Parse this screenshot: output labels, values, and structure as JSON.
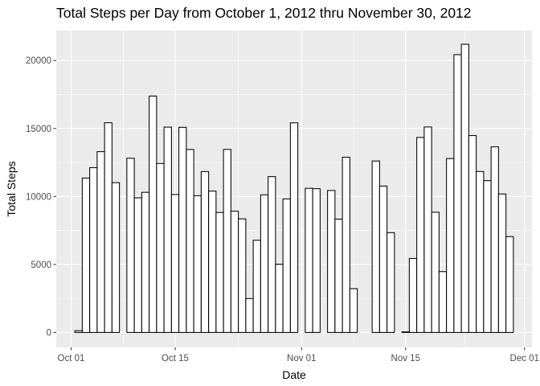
{
  "chart_data": {
    "type": "bar",
    "title": "Total Steps per Day from October 1, 2012 thru November 30, 2012",
    "xlabel": "Date",
    "ylabel": "Total Steps",
    "x_start_date": "2012-10-01",
    "x_range_dates": [
      "2012-09-29",
      "2012-12-02"
    ],
    "ylim": [
      -1100,
      22200
    ],
    "x_ticks": [
      {
        "label": "Oct 01",
        "date": "2012-10-01"
      },
      {
        "label": "Oct 15",
        "date": "2012-10-15"
      },
      {
        "label": "Nov 01",
        "date": "2012-11-01"
      },
      {
        "label": "Nov 15",
        "date": "2012-11-15"
      },
      {
        "label": "Dec 01",
        "date": "2012-12-01"
      }
    ],
    "y_ticks": [
      {
        "label": "0",
        "value": 0
      },
      {
        "label": "5000",
        "value": 5000
      },
      {
        "label": "10000",
        "value": 10000
      },
      {
        "label": "15000",
        "value": 15000
      },
      {
        "label": "20000",
        "value": 20000
      }
    ],
    "grid": true,
    "background": "#ebebeb",
    "grid_major_color": "#ffffff",
    "bar_fill": "#ffffff",
    "bar_stroke": "#000000",
    "values": [
      0,
      126,
      11352,
      12116,
      13294,
      15420,
      11015,
      0,
      12811,
      9900,
      10304,
      17382,
      12426,
      15098,
      10139,
      15084,
      13452,
      10056,
      11829,
      10395,
      8821,
      13460,
      8918,
      8355,
      2492,
      6778,
      10119,
      11458,
      5018,
      9819,
      15414,
      0,
      10600,
      10571,
      0,
      10439,
      8334,
      12883,
      3219,
      0,
      0,
      12608,
      10765,
      7336,
      0,
      41,
      5441,
      14339,
      15110,
      8841,
      4472,
      12787,
      20427,
      21194,
      14478,
      11834,
      11162,
      13646,
      10183,
      7047,
      0
    ]
  }
}
